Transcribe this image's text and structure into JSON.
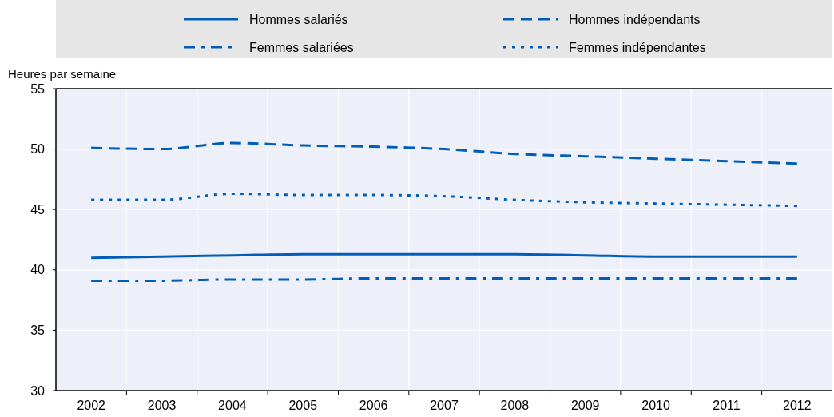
{
  "chart_data": {
    "type": "line",
    "ylabel": "Heures par semaine",
    "categories": [
      "2002",
      "2003",
      "2004",
      "2005",
      "2006",
      "2007",
      "2008",
      "2009",
      "2010",
      "2011",
      "2012"
    ],
    "series": [
      {
        "name": "Hommes salariés",
        "color": "#005eb8",
        "line_style": "solid",
        "values": [
          41.0,
          41.1,
          41.2,
          41.3,
          41.3,
          41.3,
          41.3,
          41.2,
          41.1,
          41.1,
          41.1
        ]
      },
      {
        "name": "Hommes indépendants",
        "color": "#005eb8",
        "line_style": "dashed",
        "values": [
          50.1,
          50.0,
          50.5,
          50.3,
          50.2,
          50.0,
          49.6,
          49.4,
          49.2,
          49.0,
          48.8
        ]
      },
      {
        "name": "Femmes salariées",
        "color": "#005eb8",
        "line_style": "dashdot",
        "values": [
          39.1,
          39.1,
          39.2,
          39.2,
          39.3,
          39.3,
          39.3,
          39.3,
          39.3,
          39.3,
          39.3
        ]
      },
      {
        "name": "Femmes indépendantes",
        "color": "#005eb8",
        "line_style": "dotted",
        "values": [
          45.8,
          45.8,
          46.3,
          46.2,
          46.2,
          46.1,
          45.8,
          45.6,
          45.5,
          45.4,
          45.3
        ]
      }
    ],
    "ylim": [
      30,
      55
    ],
    "yticks": [
      30,
      35,
      40,
      45,
      50,
      55
    ],
    "grid": true,
    "legend": "top"
  }
}
